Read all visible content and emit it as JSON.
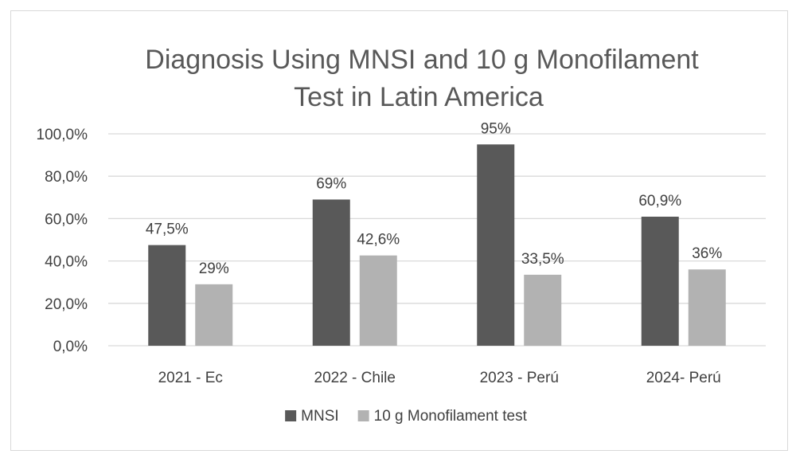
{
  "chart_data": {
    "type": "bar",
    "title_lines": [
      "Diagnosis Using MNSI and 10 g Monofilament",
      "Test in Latin America"
    ],
    "categories": [
      "2021 - Ec",
      "2022 - Chile",
      "2023 - Perú",
      "2024- Perú"
    ],
    "series": [
      {
        "name": "MNSI",
        "color": "#595959",
        "values": [
          47.5,
          69,
          95,
          60.9
        ],
        "data_labels": [
          "47,5%",
          "69%",
          "95%",
          "60,9%"
        ]
      },
      {
        "name": "10 g Monofilament test",
        "color": "#b2b2b2",
        "values": [
          29,
          42.6,
          33.5,
          36
        ],
        "data_labels": [
          "29%",
          "42,6%",
          "33,5%",
          "36%"
        ]
      }
    ],
    "y_ticks": [
      0,
      20,
      40,
      60,
      80,
      100
    ],
    "y_tick_labels": [
      "0,0%",
      "20,0%",
      "40,0%",
      "60,0%",
      "80,0%",
      "100,0%"
    ],
    "ylim": [
      0,
      100
    ],
    "grid": true,
    "gridline_color": "#d9d9d9",
    "legend_position": "bottom"
  }
}
